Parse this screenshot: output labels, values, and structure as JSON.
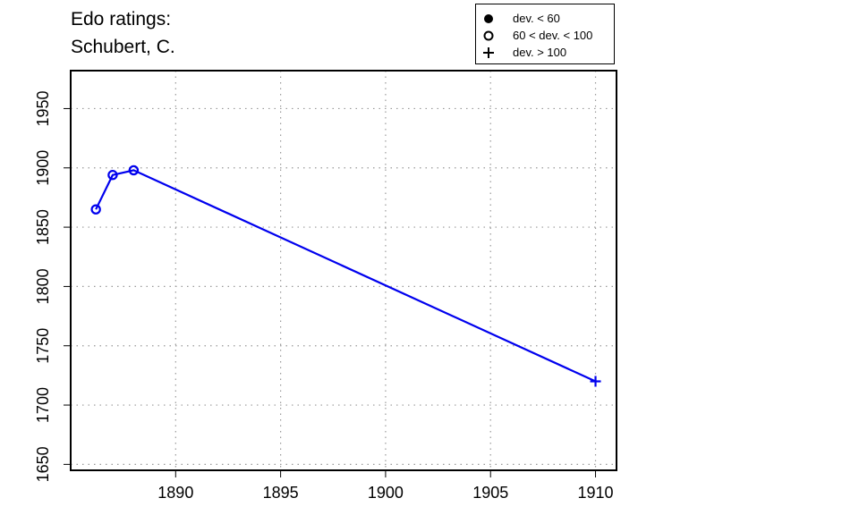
{
  "chart_data": {
    "type": "line",
    "title": [
      "Edo ratings:",
      "Schubert, C."
    ],
    "xlabel": "",
    "ylabel": "",
    "xlim": [
      1885,
      1911
    ],
    "ylim": [
      1645,
      1982
    ],
    "xticks": [
      1890,
      1895,
      1900,
      1905,
      1910
    ],
    "yticks": [
      1650,
      1700,
      1750,
      1800,
      1850,
      1900,
      1950
    ],
    "grid": true,
    "line_color": "#0000ee",
    "legend_placement": "top-right",
    "legend": [
      {
        "symbol": "filled-circle",
        "label": "dev. < 60"
      },
      {
        "symbol": "open-circle",
        "label": "60 < dev. < 100"
      },
      {
        "symbol": "plus",
        "label": "dev. > 100"
      }
    ],
    "series": [
      {
        "points": [
          {
            "x": 1886.2,
            "y": 1865,
            "marker": "open-circle"
          },
          {
            "x": 1887.0,
            "y": 1894,
            "marker": "open-circle"
          },
          {
            "x": 1888.0,
            "y": 1898,
            "marker": "open-circle"
          },
          {
            "x": 1910.0,
            "y": 1720,
            "marker": "plus"
          }
        ]
      }
    ]
  }
}
